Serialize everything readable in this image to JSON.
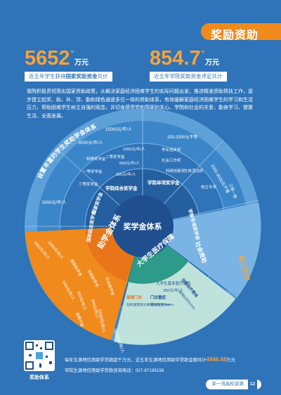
{
  "header": {
    "title": "奖励资助"
  },
  "stats": [
    {
      "value": "5652",
      "plus": "+",
      "unit": "万元",
      "caption_pre": "近五年学生获得",
      "caption_bold": "国家奖助资金",
      "caption_post": "共计"
    },
    {
      "value": "854.7",
      "plus": "+",
      "unit": "万元",
      "caption_pre": "近五年学院奖助资金评定共计",
      "caption_bold": "",
      "caption_post": ""
    }
  ],
  "intro": "我院积极贯彻落实国家资助政策，从解决家庭经济困难学生的实际问题出发，推进精准资助帮扶工作，逐步建立起奖、助、补、贷、勤和绿色通道多位一体的资助体系，有效缓解家庭经济困难学生的学习和生活压力，帮助困难学生树立自强的观念，并切身感受党和国家的关心、学院和社会的关爱，勤奋学习、健康生活、全面发展。",
  "diagram": {
    "center": "奖学金体系",
    "ring_arc_label": "设置丰富的学生奖助学金体系",
    "subsidy": "助学金体系",
    "medical": "大学生医疗保障",
    "right_side": "社会资助",
    "far_right": "勤工助学",
    "outer_labels": [
      {
        "id": "o1",
        "text": "8000元/年/人"
      },
      {
        "id": "o2",
        "text": "15000元/年/人"
      },
      {
        "id": "o3",
        "text": "200-2000元不等"
      },
      {
        "id": "o4",
        "text": "5000元/年/人"
      },
      {
        "id": "o5",
        "text": "1000-3000元不等"
      },
      {
        "id": "o6",
        "text": "2500元/年/人"
      },
      {
        "id": "o7",
        "text": "3300元/年/人"
      }
    ],
    "mid_labels": [
      {
        "id": "m1",
        "text": "特等奖学金"
      },
      {
        "id": "m2",
        "text": "一等奖学金"
      },
      {
        "id": "m3",
        "text": "二等奖学金"
      },
      {
        "id": "m4",
        "text": "三等奖学金"
      },
      {
        "id": "m5",
        "text": "学业进步奖"
      },
      {
        "id": "m6",
        "text": "社会工作奖"
      },
      {
        "id": "m7",
        "text": "文体活动奖"
      },
      {
        "id": "m8",
        "text": "科研创新奖"
      },
      {
        "id": "m9",
        "text": "1000元/年/人"
      },
      {
        "id": "m10",
        "text": "500元/年/人"
      },
      {
        "id": "m11",
        "text": "300元/年/人"
      },
      {
        "id": "m12",
        "text": "校企专项"
      },
      {
        "id": "m13",
        "text": "三等一等"
      }
    ],
    "inner_labels": [
      {
        "id": "i1",
        "text": "国家奖学金"
      },
      {
        "id": "i2",
        "text": "学院综合奖学金"
      },
      {
        "id": "i3",
        "text": "学院单项奖学金"
      },
      {
        "id": "i4",
        "text": "学院专项奖学金"
      },
      {
        "id": "i5",
        "text": "国家励志奖学金"
      }
    ],
    "subsidy_labels": [
      {
        "id": "s1",
        "text": "国家助学金"
      },
      {
        "id": "s2",
        "text": "学院助学金"
      },
      {
        "id": "s3",
        "text": "社会助学金"
      },
      {
        "id": "s4",
        "text": "3300元/年/人"
      },
      {
        "id": "s5",
        "text": "2000元/年/人"
      },
      {
        "id": "s6",
        "text": "1000元/年/人"
      },
      {
        "id": "s7",
        "text": "500元/年/人"
      },
      {
        "id": "s8",
        "text": "300元/年/人"
      },
      {
        "id": "s9",
        "text": "金额不等"
      }
    ],
    "medical_labels": [
      {
        "id": "md1",
        "text": "大学生基本医疗保险"
      },
      {
        "id": "md2",
        "text": "280元/年/人"
      },
      {
        "id": "md3",
        "text": "普通门诊"
      },
      {
        "id": "md4",
        "text": "门诊重症"
      },
      {
        "id": "md5",
        "text": "住院治疗费用"
      },
      {
        "id": "md6",
        "text": "在校医院就诊报销比例为75%"
      },
      {
        "id": "md7",
        "text": "报销比例为80%"
      },
      {
        "id": "md8",
        "text": "报销比例为70%"
      }
    ]
  },
  "footer": {
    "line1_pre": "每年生源地信用助学贷款超千万元，近五年生源地信用助学贷款金额共计",
    "line1_value": "4946.68",
    "line1_unit": "万元",
    "line2": "学院生源地信用助学贷款咨询电话：027-87195156",
    "qr_label": "奖助体系",
    "page_caption": "享一流高校资源",
    "page_number": "12"
  },
  "colors": {
    "accent": "#f08a1c",
    "gold": "#f6a33a",
    "navy": "#1f4f8e",
    "medical": "#2d9a8a"
  }
}
